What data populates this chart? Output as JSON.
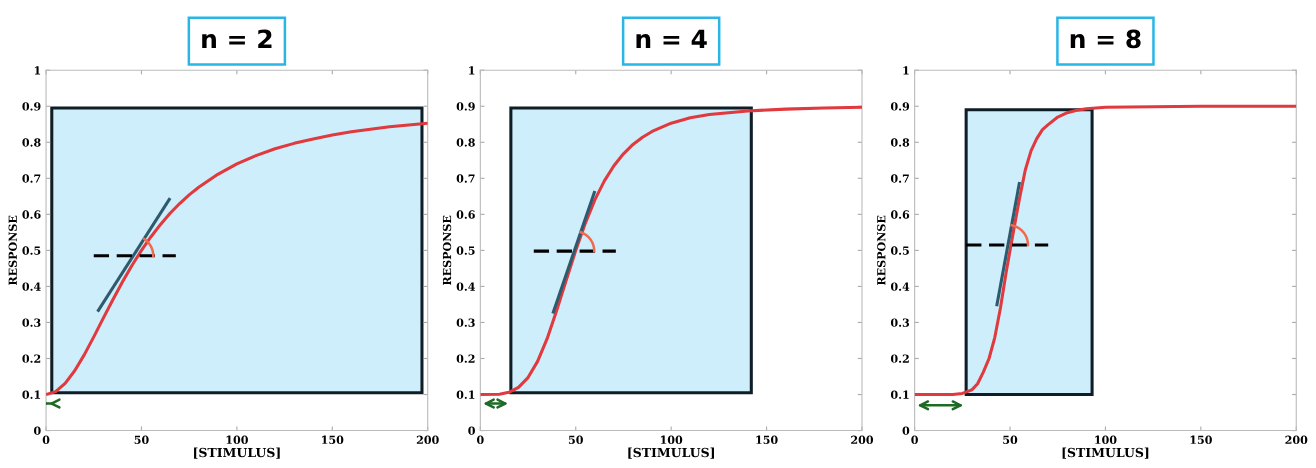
{
  "chart_data": [
    {
      "type": "line",
      "title": "n = 2",
      "xlabel": "[STIMULUS]",
      "ylabel": "RESPONSE",
      "xlim": [
        0,
        200
      ],
      "ylim": [
        0,
        1
      ],
      "xticks": [
        0,
        50,
        100,
        150,
        200
      ],
      "yticks": [
        0,
        0.1,
        0.2,
        0.3,
        0.4,
        0.5,
        0.6,
        0.7,
        0.8,
        0.9,
        1
      ],
      "grid": false,
      "series": [
        {
          "type": "area",
          "color": "#cdeefa",
          "x": [
            3,
            3,
            197,
            197,
            3
          ],
          "values": [
            0.105,
            0.895,
            0.895,
            0.105,
            0.105
          ]
        },
        {
          "type": "line",
          "color": "#e0393e",
          "x": [
            0,
            5,
            10,
            15,
            20,
            25,
            30,
            35,
            40,
            45,
            50,
            55,
            60,
            65,
            70,
            75,
            80,
            90,
            100,
            110,
            120,
            130,
            140,
            150,
            160,
            180,
            200
          ],
          "values": [
            0.1,
            0.108,
            0.131,
            0.166,
            0.21,
            0.26,
            0.312,
            0.363,
            0.412,
            0.458,
            0.5,
            0.538,
            0.572,
            0.603,
            0.63,
            0.654,
            0.675,
            0.711,
            0.74,
            0.763,
            0.782,
            0.797,
            0.809,
            0.82,
            0.829,
            0.843,
            0.853
          ]
        },
        {
          "type": "line",
          "color": "#2e5a6e",
          "x": [
            27,
            65
          ],
          "values": [
            0.33,
            0.645
          ]
        },
        {
          "type": "line",
          "color": "#000000",
          "line_style": "dashed",
          "x": [
            25,
            68
          ],
          "values": [
            0.485,
            0.485
          ]
        }
      ]
    },
    {
      "type": "line",
      "title": "n = 4",
      "xlabel": "[STIMULUS]",
      "ylabel": "RESPONSE",
      "xlim": [
        0,
        200
      ],
      "ylim": [
        0,
        1
      ],
      "xticks": [
        0,
        50,
        100,
        150,
        200
      ],
      "yticks": [
        0,
        0.1,
        0.2,
        0.3,
        0.4,
        0.5,
        0.6,
        0.7,
        0.8,
        0.9,
        1
      ],
      "grid": false,
      "series": [
        {
          "type": "area",
          "color": "#cdeefa",
          "x": [
            16,
            16,
            142,
            142,
            16
          ],
          "values": [
            0.105,
            0.895,
            0.895,
            0.105,
            0.105
          ]
        },
        {
          "type": "line",
          "color": "#e0393e",
          "x": [
            0,
            10,
            15,
            20,
            25,
            30,
            35,
            40,
            45,
            50,
            55,
            60,
            65,
            70,
            75,
            80,
            85,
            90,
            100,
            110,
            120,
            140,
            160,
            180,
            200
          ],
          "values": [
            0.1,
            0.101,
            0.106,
            0.12,
            0.147,
            0.192,
            0.255,
            0.333,
            0.417,
            0.5,
            0.575,
            0.64,
            0.693,
            0.735,
            0.768,
            0.794,
            0.814,
            0.83,
            0.853,
            0.868,
            0.877,
            0.887,
            0.892,
            0.895,
            0.897
          ]
        },
        {
          "type": "line",
          "color": "#2e5a6e",
          "x": [
            38,
            60
          ],
          "values": [
            0.325,
            0.665
          ]
        },
        {
          "type": "line",
          "color": "#000000",
          "line_style": "dashed",
          "x": [
            28,
            71
          ],
          "values": [
            0.498,
            0.498
          ]
        }
      ]
    },
    {
      "type": "line",
      "title": "n = 8",
      "xlabel": "[STIMULUS]",
      "ylabel": "RESPONSE",
      "xlim": [
        0,
        200
      ],
      "ylim": [
        0,
        1
      ],
      "xticks": [
        0,
        50,
        100,
        150,
        200
      ],
      "yticks": [
        0,
        0.1,
        0.2,
        0.3,
        0.4,
        0.5,
        0.6,
        0.7,
        0.8,
        0.9,
        1
      ],
      "grid": false,
      "series": [
        {
          "type": "area",
          "color": "#cdeefa",
          "x": [
            27,
            27,
            93,
            93,
            27
          ],
          "values": [
            0.1,
            0.89,
            0.89,
            0.1,
            0.1
          ]
        },
        {
          "type": "line",
          "color": "#e0393e",
          "x": [
            0,
            20,
            25,
            30,
            33,
            36,
            39,
            42,
            45,
            48,
            50,
            52,
            55,
            58,
            61,
            64,
            67,
            70,
            75,
            80,
            85,
            90,
            100,
            150,
            200
          ],
          "values": [
            0.1,
            0.1,
            0.103,
            0.113,
            0.13,
            0.162,
            0.2,
            0.258,
            0.341,
            0.44,
            0.5,
            0.559,
            0.645,
            0.723,
            0.776,
            0.81,
            0.835,
            0.849,
            0.87,
            0.882,
            0.889,
            0.893,
            0.897,
            0.9,
            0.9
          ]
        },
        {
          "type": "line",
          "color": "#2e5a6e",
          "x": [
            43,
            55
          ],
          "values": [
            0.345,
            0.69
          ]
        },
        {
          "type": "line",
          "color": "#000000",
          "line_style": "dashed",
          "x": [
            27,
            70
          ],
          "values": [
            0.515,
            0.515
          ]
        }
      ]
    }
  ]
}
